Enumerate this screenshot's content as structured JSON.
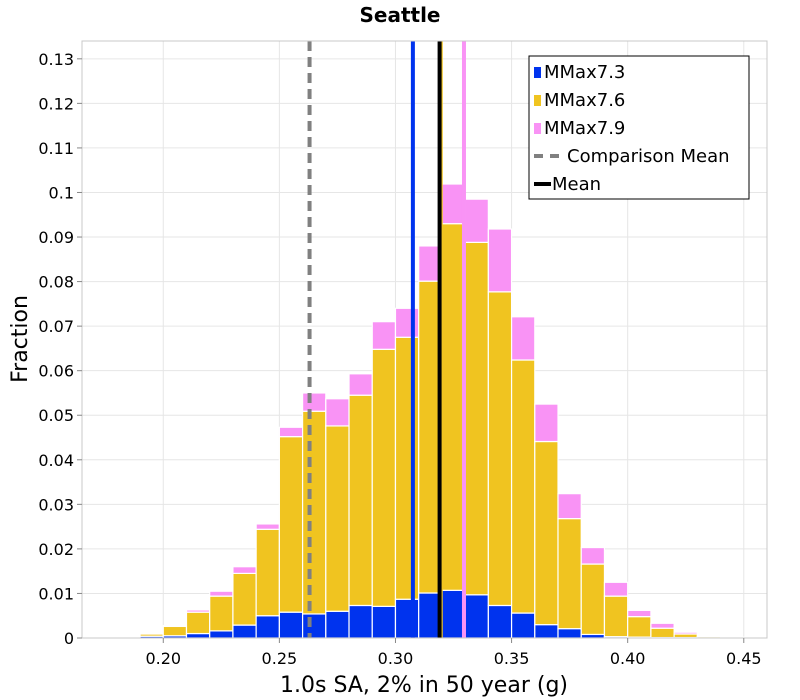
{
  "chart_data": {
    "type": "bar",
    "stacked": true,
    "title": "Seattle",
    "xlabel": "1.0s SA, 2% in 50 year (g)",
    "ylabel": "Fraction",
    "xlim": [
      0.165,
      0.46
    ],
    "ylim": [
      0,
      0.134
    ],
    "bin_width": 0.01,
    "x_ticks": [
      0.2,
      0.25,
      0.3,
      0.35,
      0.4,
      0.45
    ],
    "x_tick_labels": [
      "0.20",
      "0.25",
      "0.30",
      "0.35",
      "0.40",
      "0.45"
    ],
    "y_ticks": [
      0,
      0.01,
      0.02,
      0.03,
      0.04,
      0.05,
      0.06,
      0.07,
      0.08,
      0.09,
      0.1,
      0.11,
      0.12,
      0.13
    ],
    "y_tick_labels": [
      "0",
      "0.01",
      "0.02",
      "0.03",
      "0.04",
      "0.05",
      "0.06",
      "0.07",
      "0.08",
      "0.09",
      "0.1",
      "0.11",
      "0.12",
      "0.13"
    ],
    "grid": true,
    "legend_position": "top-right",
    "x": [
      0.175,
      0.185,
      0.195,
      0.205,
      0.215,
      0.225,
      0.235,
      0.245,
      0.255,
      0.265,
      0.275,
      0.285,
      0.295,
      0.305,
      0.315,
      0.325,
      0.335,
      0.345,
      0.355,
      0.365,
      0.375,
      0.385,
      0.395,
      0.405,
      0.415,
      0.425,
      0.435,
      0.445
    ],
    "series": [
      {
        "name": "MMax7.3",
        "color": "#0033ee",
        "values": [
          0.0001,
          0.0002,
          0.0004,
          0.0005,
          0.001,
          0.0016,
          0.0029,
          0.005,
          0.0058,
          0.0054,
          0.006,
          0.0073,
          0.0071,
          0.0087,
          0.0101,
          0.0107,
          0.0097,
          0.0073,
          0.0056,
          0.003,
          0.0021,
          0.0008,
          0.0003,
          0.0002,
          0.0001,
          0.0001,
          0.0,
          0.0
        ]
      },
      {
        "name": "MMax7.6",
        "color": "#f0c420",
        "values": [
          0.0001,
          0.0002,
          0.0005,
          0.0021,
          0.0048,
          0.0078,
          0.0116,
          0.0194,
          0.0394,
          0.0455,
          0.0416,
          0.0472,
          0.0577,
          0.0588,
          0.07,
          0.0823,
          0.0791,
          0.0704,
          0.0568,
          0.0411,
          0.0247,
          0.0158,
          0.0091,
          0.0046,
          0.0021,
          0.0008,
          0.0003,
          0.0001
        ]
      },
      {
        "name": "MMax7.9",
        "color": "#f993f5",
        "values": [
          0.0,
          0.0001,
          0.0001,
          0.0002,
          0.0005,
          0.0011,
          0.0015,
          0.0012,
          0.0021,
          0.0041,
          0.0061,
          0.0048,
          0.0062,
          0.0065,
          0.0079,
          0.0089,
          0.0097,
          0.0141,
          0.0097,
          0.0084,
          0.0056,
          0.0037,
          0.0031,
          0.0014,
          0.0011,
          0.0004,
          0.0002,
          0.0001
        ]
      }
    ],
    "vertical_lines": [
      {
        "name": "Comparison Mean",
        "x": 0.263,
        "color": "#808080",
        "style": "dashed"
      },
      {
        "name": "Mean",
        "x": 0.319,
        "color": "#000000",
        "style": "solid"
      }
    ],
    "series_mean_lines": [
      {
        "series": "MMax7.3",
        "x": 0.3075,
        "color": "#0033ee"
      },
      {
        "series": "MMax7.6",
        "x": 0.3195,
        "color": "#f0c420"
      },
      {
        "series": "MMax7.9",
        "x": 0.3295,
        "color": "#f993f5"
      }
    ]
  }
}
